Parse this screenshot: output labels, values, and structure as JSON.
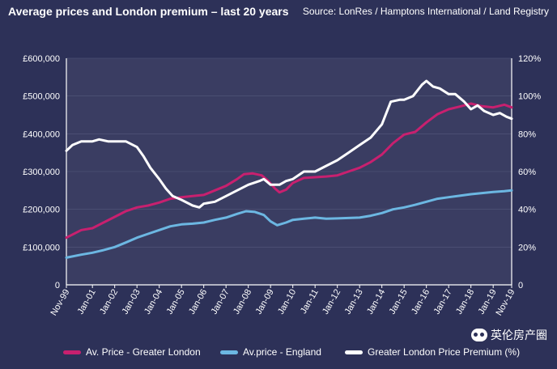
{
  "header": {
    "title": "Average prices and London premium – last 20 years",
    "source": "Source: LonRes / Hamptons International / Land Registry"
  },
  "watermark": {
    "text": "英伦房产圈",
    "icon": "wechat-icon"
  },
  "colors": {
    "background": "#2d3158",
    "plot": "#3a3d62",
    "london": "#c8206f",
    "england": "#6cb7e2",
    "premium": "#ffffff"
  },
  "chart_data": {
    "type": "line",
    "title": "Average prices and London premium – last 20 years",
    "xlabel": "",
    "ylabel": "",
    "x_range": [
      1999.83,
      2019.83
    ],
    "ylim": [
      0,
      600000
    ],
    "y2lim": [
      0,
      120
    ],
    "yticks": [
      "0",
      "£100,000",
      "£200,000",
      "£300,000",
      "£400,000",
      "£500,000",
      "£600,000"
    ],
    "y2ticks": [
      "0",
      "20%",
      "40%",
      "60%",
      "80%",
      "100%",
      "120%"
    ],
    "xticks": [
      {
        "label": "Nov-99",
        "x": 1999.83
      },
      {
        "label": "Jan-01",
        "x": 2001.0
      },
      {
        "label": "Jan-02",
        "x": 2002.0
      },
      {
        "label": "Jan-03",
        "x": 2003.0
      },
      {
        "label": "Jan-04",
        "x": 2004.0
      },
      {
        "label": "Jan-05",
        "x": 2005.0
      },
      {
        "label": "Jan-06",
        "x": 2006.0
      },
      {
        "label": "Jan-07",
        "x": 2007.0
      },
      {
        "label": "Jan-08",
        "x": 2008.0
      },
      {
        "label": "Jan-09",
        "x": 2009.0
      },
      {
        "label": "Jan-10",
        "x": 2010.0
      },
      {
        "label": "Jan-11",
        "x": 2011.0
      },
      {
        "label": "Jan-12",
        "x": 2012.0
      },
      {
        "label": "Jan-13",
        "x": 2013.0
      },
      {
        "label": "Jan-14",
        "x": 2014.0
      },
      {
        "label": "Jan-15",
        "x": 2015.0
      },
      {
        "label": "Jan-16",
        "x": 2016.0
      },
      {
        "label": "Jan-17",
        "x": 2017.0
      },
      {
        "label": "Jan-18",
        "x": 2018.0
      },
      {
        "label": "Jan-19",
        "x": 2019.0
      },
      {
        "label": "Nov-19",
        "x": 2019.83
      }
    ],
    "series": [
      {
        "name": "Av. Price - Greater London",
        "axis": "left",
        "color": "#c8206f",
        "points": [
          [
            1999.83,
            125000
          ],
          [
            2000.5,
            145000
          ],
          [
            2001.0,
            150000
          ],
          [
            2001.5,
            165000
          ],
          [
            2002.0,
            180000
          ],
          [
            2002.5,
            195000
          ],
          [
            2003.0,
            205000
          ],
          [
            2003.5,
            210000
          ],
          [
            2004.0,
            218000
          ],
          [
            2004.5,
            228000
          ],
          [
            2005.0,
            232000
          ],
          [
            2005.5,
            235000
          ],
          [
            2006.0,
            238000
          ],
          [
            2006.5,
            250000
          ],
          [
            2007.0,
            262000
          ],
          [
            2007.5,
            280000
          ],
          [
            2007.8,
            293000
          ],
          [
            2008.2,
            295000
          ],
          [
            2008.6,
            290000
          ],
          [
            2008.9,
            275000
          ],
          [
            2009.2,
            255000
          ],
          [
            2009.4,
            245000
          ],
          [
            2009.7,
            252000
          ],
          [
            2010.0,
            270000
          ],
          [
            2010.5,
            283000
          ],
          [
            2011.0,
            285000
          ],
          [
            2011.5,
            287000
          ],
          [
            2012.0,
            290000
          ],
          [
            2012.5,
            300000
          ],
          [
            2013.0,
            310000
          ],
          [
            2013.5,
            325000
          ],
          [
            2014.0,
            345000
          ],
          [
            2014.5,
            375000
          ],
          [
            2015.0,
            398000
          ],
          [
            2015.5,
            405000
          ],
          [
            2016.0,
            430000
          ],
          [
            2016.5,
            452000
          ],
          [
            2017.0,
            465000
          ],
          [
            2017.5,
            472000
          ],
          [
            2018.0,
            480000
          ],
          [
            2018.5,
            473000
          ],
          [
            2019.0,
            470000
          ],
          [
            2019.5,
            477000
          ],
          [
            2019.83,
            470000
          ]
        ]
      },
      {
        "name": "Av.price - England",
        "axis": "left",
        "color": "#6cb7e2",
        "points": [
          [
            1999.83,
            72000
          ],
          [
            2000.5,
            80000
          ],
          [
            2001.0,
            85000
          ],
          [
            2001.5,
            92000
          ],
          [
            2002.0,
            100000
          ],
          [
            2002.5,
            112000
          ],
          [
            2003.0,
            125000
          ],
          [
            2003.5,
            135000
          ],
          [
            2004.0,
            145000
          ],
          [
            2004.5,
            155000
          ],
          [
            2005.0,
            160000
          ],
          [
            2005.5,
            162000
          ],
          [
            2006.0,
            165000
          ],
          [
            2006.5,
            172000
          ],
          [
            2007.0,
            178000
          ],
          [
            2007.5,
            188000
          ],
          [
            2007.9,
            195000
          ],
          [
            2008.3,
            193000
          ],
          [
            2008.7,
            185000
          ],
          [
            2009.0,
            168000
          ],
          [
            2009.3,
            158000
          ],
          [
            2009.7,
            165000
          ],
          [
            2010.0,
            172000
          ],
          [
            2010.5,
            175000
          ],
          [
            2011.0,
            178000
          ],
          [
            2011.5,
            175000
          ],
          [
            2012.0,
            176000
          ],
          [
            2012.5,
            177000
          ],
          [
            2013.0,
            178000
          ],
          [
            2013.5,
            183000
          ],
          [
            2014.0,
            190000
          ],
          [
            2014.5,
            200000
          ],
          [
            2015.0,
            205000
          ],
          [
            2015.5,
            212000
          ],
          [
            2016.0,
            220000
          ],
          [
            2016.5,
            228000
          ],
          [
            2017.0,
            232000
          ],
          [
            2017.5,
            236000
          ],
          [
            2018.0,
            240000
          ],
          [
            2018.5,
            243000
          ],
          [
            2019.0,
            246000
          ],
          [
            2019.5,
            248000
          ],
          [
            2019.83,
            250000
          ]
        ]
      },
      {
        "name": "Greater London Price Premium (%)",
        "axis": "right",
        "color": "#ffffff",
        "points": [
          [
            1999.83,
            71
          ],
          [
            2000.1,
            74
          ],
          [
            2000.5,
            76
          ],
          [
            2001.0,
            76
          ],
          [
            2001.3,
            77
          ],
          [
            2001.7,
            76
          ],
          [
            2002.0,
            76
          ],
          [
            2002.5,
            76
          ],
          [
            2003.0,
            73
          ],
          [
            2003.3,
            68
          ],
          [
            2003.6,
            62
          ],
          [
            2004.0,
            56
          ],
          [
            2004.3,
            51
          ],
          [
            2004.6,
            47
          ],
          [
            2005.0,
            45
          ],
          [
            2005.5,
            42
          ],
          [
            2005.8,
            41
          ],
          [
            2006.0,
            43
          ],
          [
            2006.5,
            44
          ],
          [
            2007.0,
            47
          ],
          [
            2007.5,
            50
          ],
          [
            2008.0,
            53
          ],
          [
            2008.5,
            55
          ],
          [
            2008.7,
            56
          ],
          [
            2009.0,
            53
          ],
          [
            2009.4,
            53
          ],
          [
            2009.7,
            55
          ],
          [
            2010.0,
            56
          ],
          [
            2010.5,
            60
          ],
          [
            2011.0,
            60
          ],
          [
            2011.5,
            63
          ],
          [
            2012.0,
            66
          ],
          [
            2012.5,
            70
          ],
          [
            2013.0,
            74
          ],
          [
            2013.5,
            78
          ],
          [
            2014.0,
            85
          ],
          [
            2014.4,
            97
          ],
          [
            2014.8,
            98
          ],
          [
            2015.0,
            98
          ],
          [
            2015.4,
            100
          ],
          [
            2015.8,
            106
          ],
          [
            2016.0,
            108
          ],
          [
            2016.3,
            105
          ],
          [
            2016.6,
            104
          ],
          [
            2017.0,
            101
          ],
          [
            2017.3,
            101
          ],
          [
            2017.7,
            97
          ],
          [
            2018.0,
            93
          ],
          [
            2018.3,
            95
          ],
          [
            2018.6,
            92
          ],
          [
            2019.0,
            90
          ],
          [
            2019.3,
            91
          ],
          [
            2019.6,
            89
          ],
          [
            2019.83,
            88
          ]
        ]
      }
    ]
  }
}
